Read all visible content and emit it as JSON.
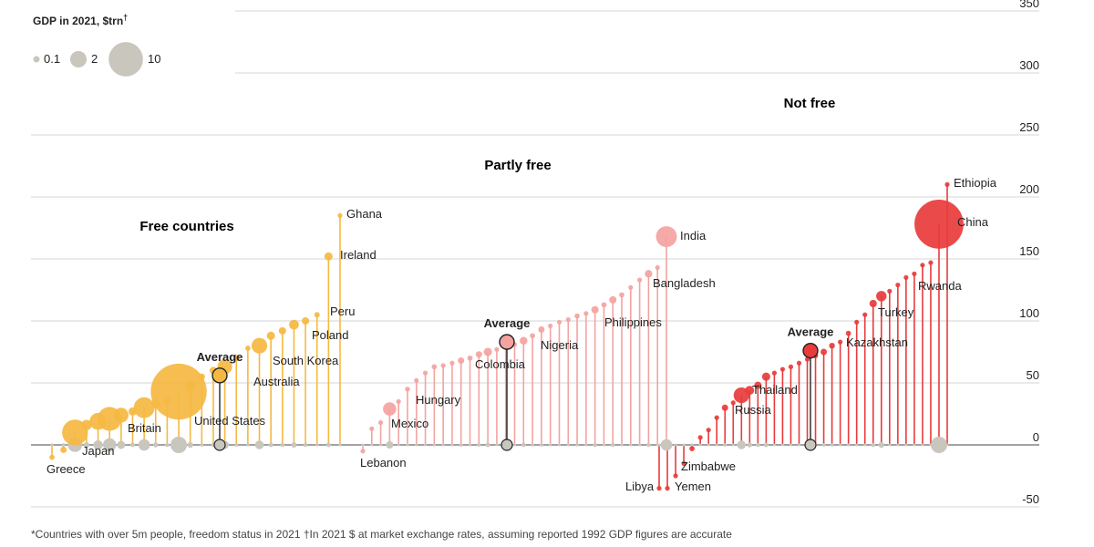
{
  "chart_data": {
    "type": "scatter",
    "y_range": [
      -50,
      350
    ],
    "y_ticks": [
      "-50",
      "0",
      "50",
      "100",
      "150",
      "200",
      "250",
      "300",
      "350"
    ],
    "grid": true,
    "colors": {
      "free": "#f5b942",
      "partly": "#f4a3a0",
      "notfree": "#e83b3b",
      "base": "#c9c6be",
      "text": "#222222"
    },
    "legend": {
      "title": "GDP in 2021, $trn",
      "title_mark": "†",
      "sizes": [
        {
          "label": "0.1",
          "value": 0.1
        },
        {
          "label": "2",
          "value": 2
        },
        {
          "label": "10",
          "value": 10
        }
      ]
    },
    "groups": [
      {
        "id": "free",
        "name": "Free countries",
        "countries": [
          {
            "name": "Greece",
            "y": -10,
            "gdp": 0.2
          },
          {
            "name": "",
            "y": -4,
            "gdp": 0.3
          },
          {
            "name": "Japan",
            "y": 10,
            "gdp": 4.9
          },
          {
            "name": "",
            "y": 16,
            "gdp": 0.8
          },
          {
            "name": "",
            "y": 19,
            "gdp": 2.1
          },
          {
            "name": "",
            "y": 21,
            "gdp": 4.2
          },
          {
            "name": "",
            "y": 24,
            "gdp": 1.6
          },
          {
            "name": "",
            "y": 27,
            "gdp": 0.5
          },
          {
            "name": "Britain",
            "y": 30,
            "gdp": 3.2
          },
          {
            "name": "",
            "y": 33,
            "gdp": 0.6
          },
          {
            "name": "",
            "y": 36,
            "gdp": 0.4
          },
          {
            "name": "United States",
            "y": 43,
            "gdp": 23
          },
          {
            "name": "",
            "y": 48,
            "gdp": 0.8
          },
          {
            "name": "",
            "y": 55,
            "gdp": 0.3
          },
          {
            "name": "",
            "y": 60,
            "gdp": 0.4
          },
          {
            "name": "Australia",
            "y": 63,
            "gdp": 1.6
          },
          {
            "name": "",
            "y": 70,
            "gdp": 0.3
          },
          {
            "name": "",
            "y": 78,
            "gdp": 0.2
          },
          {
            "name": "South Korea",
            "y": 80,
            "gdp": 1.8
          },
          {
            "name": "",
            "y": 88,
            "gdp": 0.5
          },
          {
            "name": "",
            "y": 92,
            "gdp": 0.4
          },
          {
            "name": "Poland",
            "y": 97,
            "gdp": 0.7
          },
          {
            "name": "",
            "y": 100,
            "gdp": 0.4
          },
          {
            "name": "Peru",
            "y": 105,
            "gdp": 0.22
          },
          {
            "name": "Ireland",
            "y": 152,
            "gdp": 0.5
          },
          {
            "name": "Ghana",
            "y": 185,
            "gdp": 0.08
          }
        ],
        "average": {
          "label": "Average",
          "y": 56,
          "gdp": 1.5
        }
      },
      {
        "id": "partly",
        "name": "Partly free",
        "countries": [
          {
            "name": "Lebanon",
            "y": -5,
            "gdp": 0.02
          },
          {
            "name": "",
            "y": 13,
            "gdp": 0.05
          },
          {
            "name": "",
            "y": 18,
            "gdp": 0.05
          },
          {
            "name": "Mexico",
            "y": 29,
            "gdp": 1.3
          },
          {
            "name": "",
            "y": 35,
            "gdp": 0.06
          },
          {
            "name": "Hungary",
            "y": 45,
            "gdp": 0.18
          },
          {
            "name": "",
            "y": 52,
            "gdp": 0.05
          },
          {
            "name": "",
            "y": 58,
            "gdp": 0.09
          },
          {
            "name": "",
            "y": 63,
            "gdp": 0.2
          },
          {
            "name": "",
            "y": 64,
            "gdp": 0.15
          },
          {
            "name": "",
            "y": 66,
            "gdp": 0.1
          },
          {
            "name": "",
            "y": 68,
            "gdp": 0.3
          },
          {
            "name": "",
            "y": 70,
            "gdp": 0.2
          },
          {
            "name": "Colombia",
            "y": 73,
            "gdp": 0.3
          },
          {
            "name": "",
            "y": 75,
            "gdp": 0.5
          },
          {
            "name": "",
            "y": 77,
            "gdp": 0.1
          },
          {
            "name": "",
            "y": 79,
            "gdp": 0.1
          },
          {
            "name": "",
            "y": 81,
            "gdp": 0.15
          },
          {
            "name": "Nigeria",
            "y": 84,
            "gdp": 0.44
          },
          {
            "name": "",
            "y": 88,
            "gdp": 0.2
          },
          {
            "name": "",
            "y": 93,
            "gdp": 0.3
          },
          {
            "name": "",
            "y": 96,
            "gdp": 0.15
          },
          {
            "name": "",
            "y": 99,
            "gdp": 0.1
          },
          {
            "name": "",
            "y": 101,
            "gdp": 0.1
          },
          {
            "name": "",
            "y": 104,
            "gdp": 0.2
          },
          {
            "name": "",
            "y": 106,
            "gdp": 0.1
          },
          {
            "name": "",
            "y": 109,
            "gdp": 0.4
          },
          {
            "name": "",
            "y": 113,
            "gdp": 0.2
          },
          {
            "name": "Philippines",
            "y": 117,
            "gdp": 0.39
          },
          {
            "name": "",
            "y": 121,
            "gdp": 0.2
          },
          {
            "name": "",
            "y": 127,
            "gdp": 0.1
          },
          {
            "name": "",
            "y": 133,
            "gdp": 0.08
          },
          {
            "name": "Bangladesh",
            "y": 138,
            "gdp": 0.42
          },
          {
            "name": "",
            "y": 143,
            "gdp": 0.05
          },
          {
            "name": "India",
            "y": 168,
            "gdp": 3.2
          }
        ],
        "average": {
          "label": "Average",
          "y": 83,
          "gdp": 0.3
        }
      },
      {
        "id": "notfree",
        "name": "Not free",
        "countries": [
          {
            "name": "Libya",
            "y": -35,
            "gdp": 0.04
          },
          {
            "name": "Yemen",
            "y": -35,
            "gdp": 0.02
          },
          {
            "name": "",
            "y": -25,
            "gdp": 0.02
          },
          {
            "name": "Zimbabwe",
            "y": -15,
            "gdp": 0.03
          },
          {
            "name": "",
            "y": -3,
            "gdp": 0.2
          },
          {
            "name": "",
            "y": 6,
            "gdp": 0.1
          },
          {
            "name": "",
            "y": 12,
            "gdp": 0.05
          },
          {
            "name": "",
            "y": 22,
            "gdp": 0.1
          },
          {
            "name": "",
            "y": 30,
            "gdp": 0.3
          },
          {
            "name": "",
            "y": 34,
            "gdp": 0.15
          },
          {
            "name": "Russia",
            "y": 40,
            "gdp": 1.8
          },
          {
            "name": "",
            "y": 44,
            "gdp": 0.6
          },
          {
            "name": "",
            "y": 48,
            "gdp": 0.4
          },
          {
            "name": "Thailand",
            "y": 55,
            "gdp": 0.5
          },
          {
            "name": "",
            "y": 58,
            "gdp": 0.1
          },
          {
            "name": "",
            "y": 61,
            "gdp": 0.1
          },
          {
            "name": "",
            "y": 63,
            "gdp": 0.15
          },
          {
            "name": "",
            "y": 66,
            "gdp": 0.1
          },
          {
            "name": "",
            "y": 69,
            "gdp": 0.1
          },
          {
            "name": "",
            "y": 72,
            "gdp": 0.2
          },
          {
            "name": "",
            "y": 75,
            "gdp": 0.3
          },
          {
            "name": "",
            "y": 80,
            "gdp": 0.25
          },
          {
            "name": "",
            "y": 83,
            "gdp": 0.1
          },
          {
            "name": "Kazakhstan",
            "y": 90,
            "gdp": 0.19
          },
          {
            "name": "",
            "y": 99,
            "gdp": 0.15
          },
          {
            "name": "",
            "y": 105,
            "gdp": 0.1
          },
          {
            "name": "",
            "y": 114,
            "gdp": 0.4
          },
          {
            "name": "Turkey",
            "y": 120,
            "gdp": 0.8
          },
          {
            "name": "",
            "y": 124,
            "gdp": 0.15
          },
          {
            "name": "",
            "y": 129,
            "gdp": 0.1
          },
          {
            "name": "Rwanda",
            "y": 135,
            "gdp": 0.011
          },
          {
            "name": "",
            "y": 138,
            "gdp": 0.05
          },
          {
            "name": "",
            "y": 145,
            "gdp": 0.05
          },
          {
            "name": "",
            "y": 147,
            "gdp": 0.05
          },
          {
            "name": "China",
            "y": 178,
            "gdp": 17.7
          },
          {
            "name": "Ethiopia",
            "y": 210,
            "gdp": 0.11
          }
        ],
        "average": {
          "label": "Average",
          "y": 76,
          "gdp": 0.8
        }
      }
    ],
    "footnote": "*Countries with over 5m people, freedom status in 2021 †In 2021 $ at market exchange rates, assuming reported 1992 GDP figures are accurate"
  }
}
